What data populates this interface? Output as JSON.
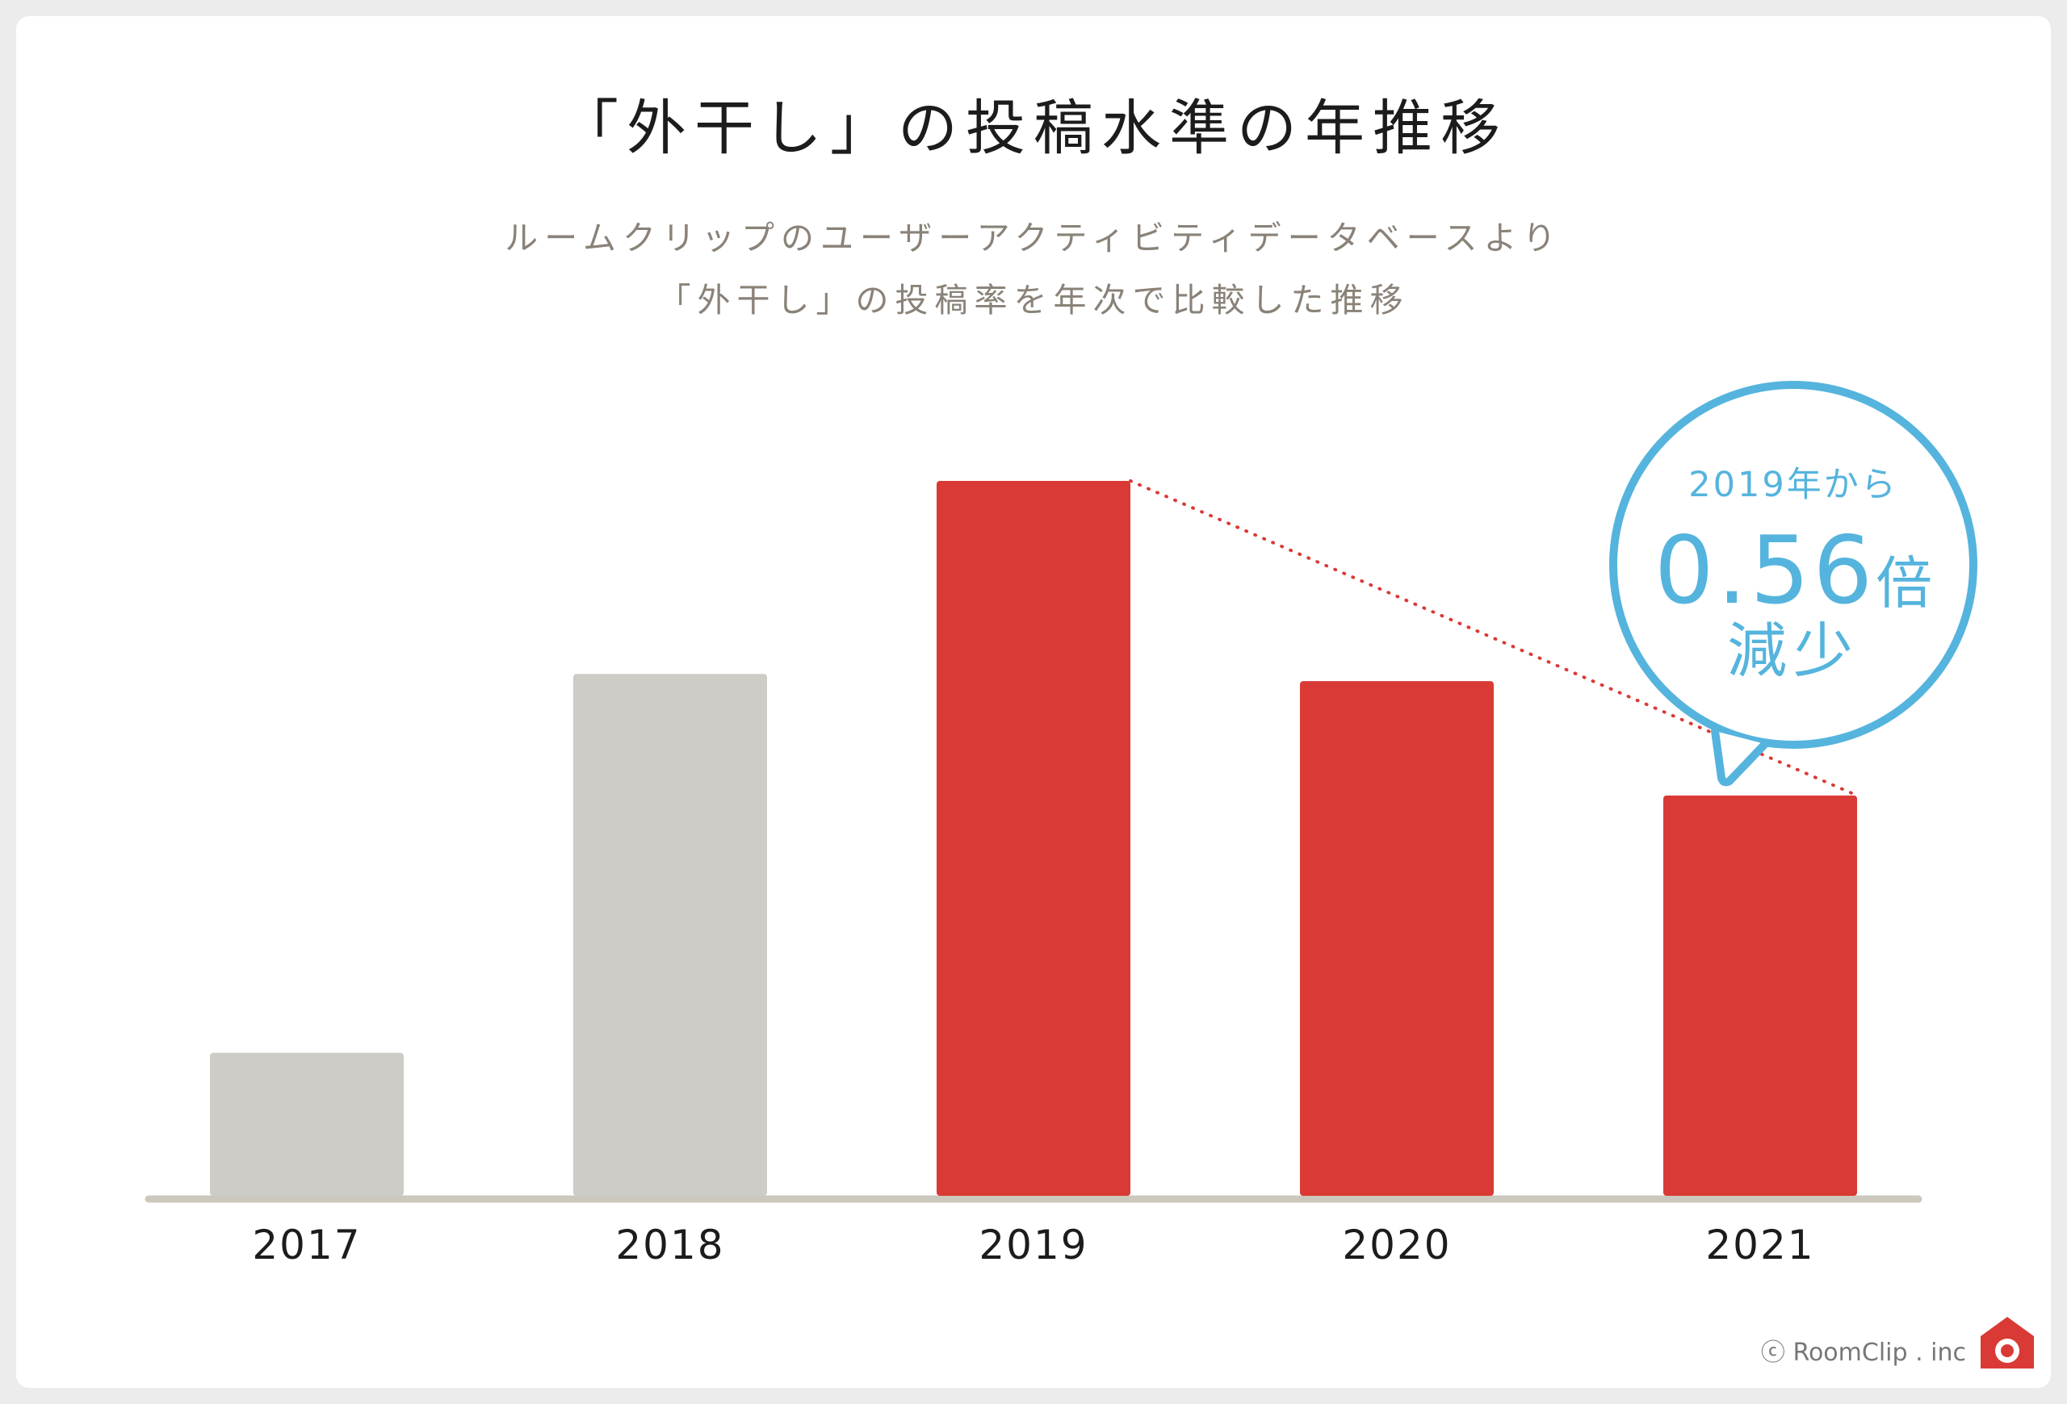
{
  "chart_data": {
    "type": "bar",
    "title": "「外干し」の投稿水準の年推移",
    "subtitle": [
      "ルームクリップのユーザーアクティビティデータベースより",
      "「外干し」の投稿率を年次で比較した推移"
    ],
    "categories": [
      "2017",
      "2018",
      "2019",
      "2020",
      "2021"
    ],
    "values": [
      0.2,
      0.73,
      1.0,
      0.72,
      0.56
    ],
    "highlight": [
      false,
      false,
      true,
      true,
      true
    ],
    "colors": {
      "base": "#cdccc7",
      "highlight": "#da3a35",
      "axis": "#cdc8bd",
      "connector": "#da3a35",
      "callout": "#55b4dd"
    },
    "ylim": [
      0,
      1.0
    ],
    "connector": {
      "from": "2019",
      "to": "2021",
      "style": "dotted"
    },
    "annotation": {
      "line1": "2019年から",
      "value": "0.56",
      "unit": "倍",
      "line3": "減少"
    },
    "xlabel": "",
    "ylabel": ""
  },
  "footer": {
    "copyright": "ⓒ RoomClip . inc",
    "logo_icon": "roomclip-house-icon"
  }
}
